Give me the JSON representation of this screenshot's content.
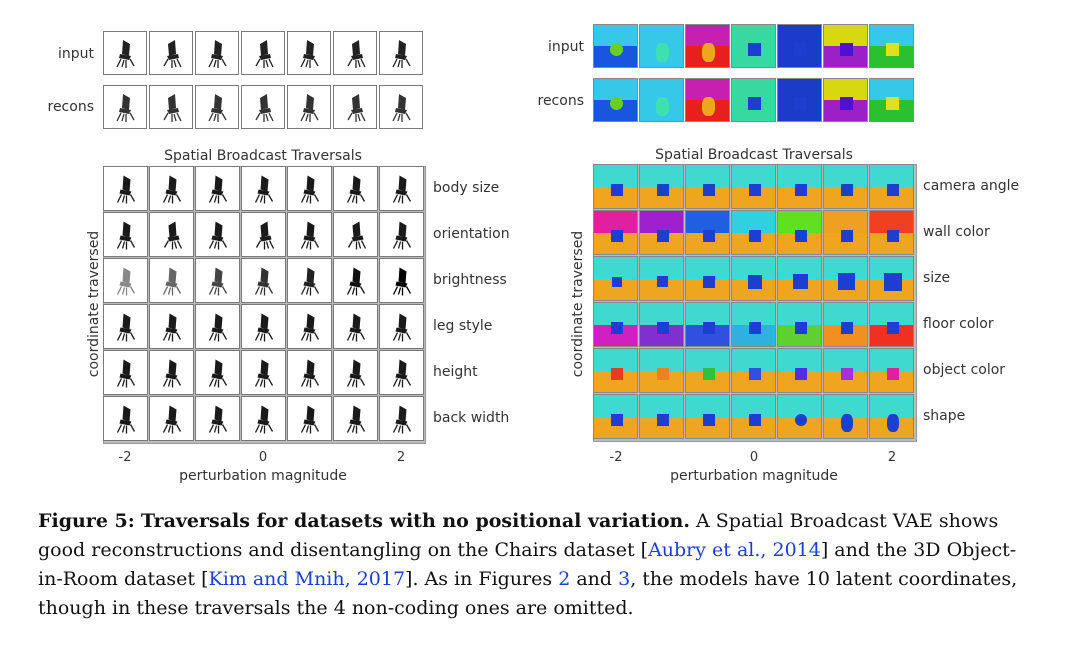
{
  "left_panel": {
    "row_labels_top": [
      "input",
      "recons"
    ],
    "title": "Spatial Broadcast Traversals",
    "traversal_labels": [
      "body size",
      "orientation",
      "brightness",
      "leg style",
      "height",
      "back width"
    ],
    "y_axis_label": "coordinate traversed",
    "x_ticks": [
      "-2",
      "0",
      "2"
    ],
    "x_axis_label": "perturbation magnitude"
  },
  "right_panel": {
    "row_labels_top": [
      "input",
      "recons"
    ],
    "title": "Spatial Broadcast Traversals",
    "traversal_labels": [
      "camera angle",
      "wall color",
      "size",
      "floor color",
      "object color",
      "shape"
    ],
    "y_axis_label": "coordinate traversed",
    "x_ticks": [
      "-2",
      "0",
      "2"
    ],
    "x_axis_label": "perturbation magnitude",
    "colors": {
      "wall": "#3fd9d0",
      "sky": "#35c8e8",
      "floor": "#f0a520",
      "object": "#1c3fd0"
    }
  },
  "caption": {
    "label": "Figure 5:",
    "bold_title": "Traversals for datasets with no positional variation.",
    "text_1": "A Spatial Broadcast VAE shows good reconstructions and disentangling on the Chairs dataset [",
    "cite_1": "Aubry et al., 2014",
    "text_2": "] and the 3D Object-in-Room dataset [",
    "cite_2": "Kim and Mnih, 2017",
    "text_3": "]. As in Figures ",
    "fig_ref_1": "2",
    "text_4": " and ",
    "fig_ref_2": "3",
    "text_5": ", the models have 10 latent coordinates, though in these traversals the 4 non-coding ones are omitted."
  }
}
